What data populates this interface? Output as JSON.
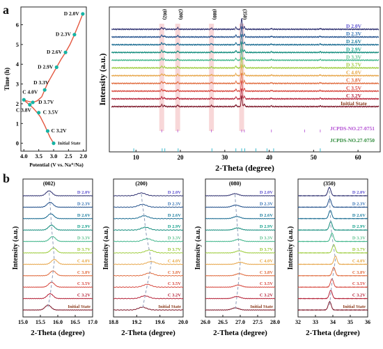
{
  "panel_labels": [
    "a",
    "b"
  ],
  "chart_data": [
    {
      "type": "line",
      "id": "voltage-profile",
      "xlabel": "Potential (V vs. Na⁺/Na)",
      "ylabel": "Time (h)",
      "xlim": [
        4.1,
        1.9
      ],
      "ylim": [
        -0.4,
        6.9
      ],
      "xticks": [
        4.0,
        3.5,
        3.0,
        2.5,
        2.0
      ],
      "yticks": [
        0,
        1,
        2,
        3,
        4,
        5,
        6
      ],
      "line_color": "#e4573f",
      "marker_color": "#16b3a4",
      "curve": [
        [
          3.0,
          0.0
        ],
        [
          3.12,
          0.3
        ],
        [
          3.3,
          0.9
        ],
        [
          3.45,
          1.35
        ],
        [
          3.58,
          1.6
        ],
        [
          3.7,
          1.8
        ],
        [
          3.85,
          2.0
        ],
        [
          3.95,
          2.12
        ],
        [
          4.02,
          2.2
        ],
        [
          3.85,
          2.12
        ],
        [
          3.7,
          2.07
        ],
        [
          3.55,
          2.15
        ],
        [
          3.4,
          2.35
        ],
        [
          3.3,
          2.7
        ],
        [
          3.2,
          3.05
        ],
        [
          3.05,
          3.45
        ],
        [
          2.9,
          3.85
        ],
        [
          2.75,
          4.25
        ],
        [
          2.6,
          4.6
        ],
        [
          2.45,
          5.0
        ],
        [
          2.3,
          5.5
        ],
        [
          2.15,
          6.05
        ],
        [
          2.02,
          6.55
        ]
      ],
      "points": [
        {
          "label": "Initial State",
          "x": 3.0,
          "y": 0.0
        },
        {
          "label": "C 3.2V",
          "x": 3.2,
          "y": 0.62
        },
        {
          "label": "C 3.5V",
          "x": 3.5,
          "y": 1.55
        },
        {
          "label": "C 3.8V",
          "x": 3.8,
          "y": 1.95
        },
        {
          "label": "C 4.0V",
          "x": 4.0,
          "y": 2.2
        },
        {
          "label": "D 3.7V",
          "x": 3.7,
          "y": 2.07
        },
        {
          "label": "D 3.3V",
          "x": 3.3,
          "y": 2.7
        },
        {
          "label": "D 2.9V",
          "x": 2.9,
          "y": 3.85
        },
        {
          "label": "D 2.6V",
          "x": 2.6,
          "y": 4.6
        },
        {
          "label": "D 2.3V",
          "x": 2.3,
          "y": 5.5
        },
        {
          "label": "D 2.0V",
          "x": 2.02,
          "y": 6.55
        }
      ]
    },
    {
      "type": "line",
      "id": "xrd-full",
      "xlabel": "2-Theta (degree)",
      "ylabel": "Intensity (a.u.)",
      "xlim": [
        4,
        65
      ],
      "xticks": [
        10,
        20,
        30,
        40,
        50,
        60
      ],
      "peak_marks": [
        "(002)",
        "(200)",
        "(080)",
        "(350)"
      ],
      "highlight_bands": [
        15.8,
        19.4,
        27.0,
        33.8
      ],
      "series_labels": [
        "D 2.0V",
        "D 2.3V",
        "D 2.6V",
        "D 2.9V",
        "D 3.3V",
        "D 3.7V",
        "C 4.0V",
        "C 3.8V",
        "C 3.5V",
        "C 3.2V",
        "Initial State"
      ],
      "series_colors": [
        "#2b2d6e",
        "#1f4e8a",
        "#14688f",
        "#0f8a7a",
        "#3fb58a",
        "#9ccc3c",
        "#e7a64a",
        "#e06a3c",
        "#d6443b",
        "#b41f35",
        "#7a1225"
      ],
      "label_colors": [
        "#5a4fcf",
        "#2f6fb3",
        "#1c7ea0",
        "#13a08c",
        "#5cc18e",
        "#9bc838",
        "#e6a53f",
        "#e0683a",
        "#d8413a",
        "#b31f35",
        "#8a3a1a"
      ],
      "peaks": [
        [
          15.8,
          5
        ],
        [
          16.4,
          3
        ],
        [
          19.4,
          4
        ],
        [
          27.0,
          3
        ],
        [
          32.5,
          5
        ],
        [
          33.8,
          28
        ],
        [
          34.4,
          7
        ],
        [
          40.5,
          2
        ],
        [
          51.5,
          2
        ]
      ],
      "reference_1": {
        "label": "JCPDS-NO.27-0751",
        "color": "#b34fd3",
        "ticks": [
          15.8,
          19.4,
          27.0,
          33.8,
          34.4,
          40.5,
          48.0,
          51.5
        ]
      },
      "reference_2": {
        "label": "JCPDS-NO.27-0750",
        "color": "#2e8b3a",
        "ticks": [
          9.5,
          15.9,
          16.5,
          19.5,
          27.1,
          32.5,
          33.8,
          34.5,
          37.0,
          39.5,
          41.0,
          51.5
        ]
      }
    },
    {
      "type": "line",
      "id": "xrd-zoom-002",
      "title": "(002)",
      "xlabel": "2-Theta (degree)",
      "ylabel": "Intensity (a.u.)",
      "xlim": [
        15.0,
        17.0
      ],
      "xticks": [
        15.0,
        15.5,
        16.0,
        16.5,
        17.0
      ],
      "series_labels": [
        "D 2.0V",
        "D 2.3V",
        "D 2.6V",
        "D 2.9V",
        "D 3.3V",
        "D 3.7V",
        "C 4.0V",
        "C 3.8V",
        "C 3.5V",
        "C 3.2V",
        "Initial State"
      ],
      "peak_positions": [
        15.75,
        15.78,
        15.8,
        15.82,
        15.85,
        15.88,
        15.9,
        15.86,
        15.82,
        15.78,
        15.72
      ],
      "peak_height": 7,
      "peak_width": 0.12
    },
    {
      "type": "line",
      "id": "xrd-zoom-200",
      "title": "(200)",
      "xlabel": "2-Theta (degree)",
      "ylabel": "Intensity (a.u.)",
      "xlim": [
        18.8,
        20.0
      ],
      "xticks": [
        18.8,
        19.2,
        19.6,
        20.0
      ],
      "series_labels": [
        "D 2.0V",
        "D 2.3V",
        "D 2.6V",
        "D 2.9V",
        "D 3.3V",
        "D 3.7V",
        "C 4.0V",
        "C 3.8V",
        "C 3.5V",
        "C 3.2V",
        "Initial State"
      ],
      "peak_positions": [
        19.28,
        19.3,
        19.33,
        19.35,
        19.38,
        19.42,
        19.45,
        19.42,
        19.38,
        19.34,
        19.3
      ],
      "peak_height": 4,
      "peak_width": 0.1
    },
    {
      "type": "line",
      "id": "xrd-zoom-080",
      "title": "(080)",
      "xlabel": "2-Theta (degree)",
      "ylabel": "Intensity (a.u.)",
      "xlim": [
        26.0,
        28.0
      ],
      "xticks": [
        26.0,
        26.5,
        27.0,
        27.5,
        28.0
      ],
      "series_labels": [
        "D 2.0V",
        "D 2.3V",
        "D 2.6V",
        "D 2.9V",
        "D 3.3V",
        "D 3.7V",
        "C 4.0V",
        "C 3.8V",
        "C 3.5V",
        "C 3.2V",
        "Initial State"
      ],
      "peak_positions": [
        26.85,
        26.87,
        26.9,
        26.92,
        26.95,
        26.97,
        27.0,
        26.97,
        26.94,
        26.9,
        26.86
      ],
      "peak_height": 3,
      "peak_width": 0.14
    },
    {
      "type": "line",
      "id": "xrd-zoom-350",
      "title": "(350)",
      "xlabel": "2-Theta (degree)",
      "ylabel": "Intensity (a.u.)",
      "xlim": [
        32,
        36
      ],
      "xticks": [
        32,
        33,
        34,
        35,
        36
      ],
      "series_labels": [
        "D 2.0V",
        "D 2.3V",
        "D 2.6V",
        "D 2.9V",
        "D 3.3V",
        "D 3.7V",
        "C 4.0V",
        "C 3.8V",
        "C 3.5V",
        "C 3.2V",
        "Initial State"
      ],
      "peak_positions": [
        33.8,
        33.82,
        33.85,
        33.88,
        33.95,
        34.05,
        34.15,
        34.05,
        33.95,
        33.88,
        33.82
      ],
      "peak_height": 12,
      "peak_width": 0.12
    }
  ]
}
